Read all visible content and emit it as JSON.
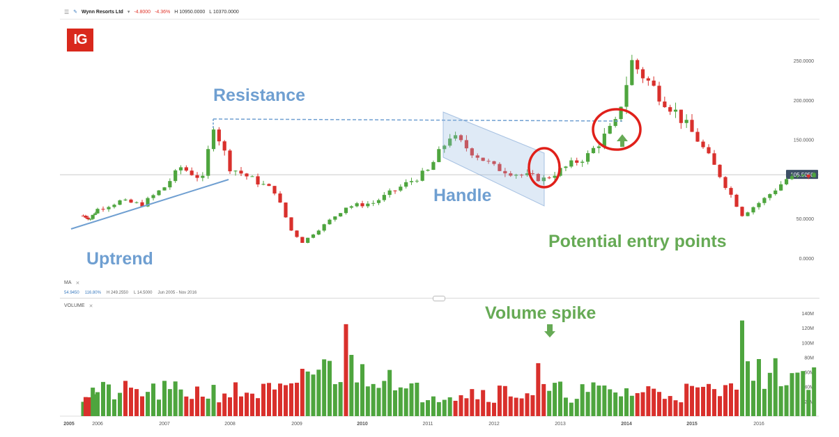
{
  "header": {
    "instrument": "Wynn Resorts Ltd",
    "change": "-4.8000",
    "change_pct": "-4.36%",
    "high": "H 10950.0000",
    "low": "L 10370.0000"
  },
  "logo": {
    "text": "IG"
  },
  "indicators": {
    "ma": {
      "label": "MA",
      "value": "54.9450",
      "pct": "116.80%",
      "high": "H 249.2550",
      "low": "L 14.5000",
      "range": "Jun 2005 - Nov 2016"
    },
    "volume": {
      "label": "VOLUME"
    }
  },
  "annotations": {
    "resistance": "Resistance",
    "handle": "Handle",
    "uptrend": "Uptrend",
    "entry": "Potential entry points",
    "volume_spike": "Volume spike"
  },
  "colors": {
    "up": "#4ea53e",
    "down": "#d9302c",
    "annotation_blue": "#6f9fd1",
    "annotation_green": "#66aa55",
    "circle_red": "#e0201a",
    "last_price_tag": "#3d4f66"
  },
  "chart_data": [
    {
      "type": "candlestick",
      "title": "",
      "xlabel": "",
      "ylabel": "",
      "x_ticks": [
        "2005",
        "2006",
        "2007",
        "2008",
        "2009",
        "2010",
        "2011",
        "2012",
        "2013",
        "2014",
        "2015",
        "2016"
      ],
      "y_ticks": [
        "250.0000",
        "200.0000",
        "150.0000",
        "105.5050",
        "50.0000",
        "0.0000"
      ],
      "ylim": [
        0,
        250
      ],
      "last_price": "105.5050",
      "resistance_level": 175,
      "annotated_events": [
        "2007-10 peak ~170",
        "2009-02 low ~20",
        "2013-11 breakout ~170",
        "2014-02 peak ~248",
        "2015-10 low ~55"
      ],
      "close_series": [
        {
          "x": "2005-06",
          "close": 55
        },
        {
          "x": "2005-10",
          "close": 50
        },
        {
          "x": "2006-01",
          "close": 62
        },
        {
          "x": "2006-05",
          "close": 72
        },
        {
          "x": "2006-09",
          "close": 68
        },
        {
          "x": "2007-01",
          "close": 90
        },
        {
          "x": "2007-04",
          "close": 115
        },
        {
          "x": "2007-08",
          "close": 100
        },
        {
          "x": "2007-10",
          "close": 170
        },
        {
          "x": "2008-01",
          "close": 115
        },
        {
          "x": "2008-05",
          "close": 100
        },
        {
          "x": "2008-09",
          "close": 85
        },
        {
          "x": "2008-12",
          "close": 35
        },
        {
          "x": "2009-02",
          "close": 20
        },
        {
          "x": "2009-06",
          "close": 42
        },
        {
          "x": "2009-10",
          "close": 65
        },
        {
          "x": "2010-03",
          "close": 70
        },
        {
          "x": "2010-08",
          "close": 90
        },
        {
          "x": "2011-01",
          "close": 110
        },
        {
          "x": "2011-05",
          "close": 155
        },
        {
          "x": "2011-09",
          "close": 135
        },
        {
          "x": "2012-01",
          "close": 115
        },
        {
          "x": "2012-06",
          "close": 105
        },
        {
          "x": "2012-10",
          "close": 100
        },
        {
          "x": "2013-02",
          "close": 115
        },
        {
          "x": "2013-06",
          "close": 130
        },
        {
          "x": "2013-11",
          "close": 170
        },
        {
          "x": "2014-02",
          "close": 248
        },
        {
          "x": "2014-06",
          "close": 215
        },
        {
          "x": "2014-10",
          "close": 185
        },
        {
          "x": "2015-02",
          "close": 150
        },
        {
          "x": "2015-06",
          "close": 105
        },
        {
          "x": "2015-10",
          "close": 55
        },
        {
          "x": "2016-02",
          "close": 75
        },
        {
          "x": "2016-06",
          "close": 100
        },
        {
          "x": "2016-11",
          "close": 105.5
        }
      ]
    },
    {
      "type": "bar",
      "title": "VOLUME",
      "y_ticks": [
        "140M",
        "120M",
        "100M",
        "80M",
        "60M",
        "40M",
        "20M"
      ],
      "ylim": [
        0,
        140
      ],
      "notable_bars": [
        {
          "x": "2009-10",
          "value": 125,
          "direction": "down"
        },
        {
          "x": "2012-09",
          "value": 72,
          "direction": "down"
        },
        {
          "x": "2015-10",
          "value": 130,
          "direction": "up"
        }
      ]
    }
  ]
}
